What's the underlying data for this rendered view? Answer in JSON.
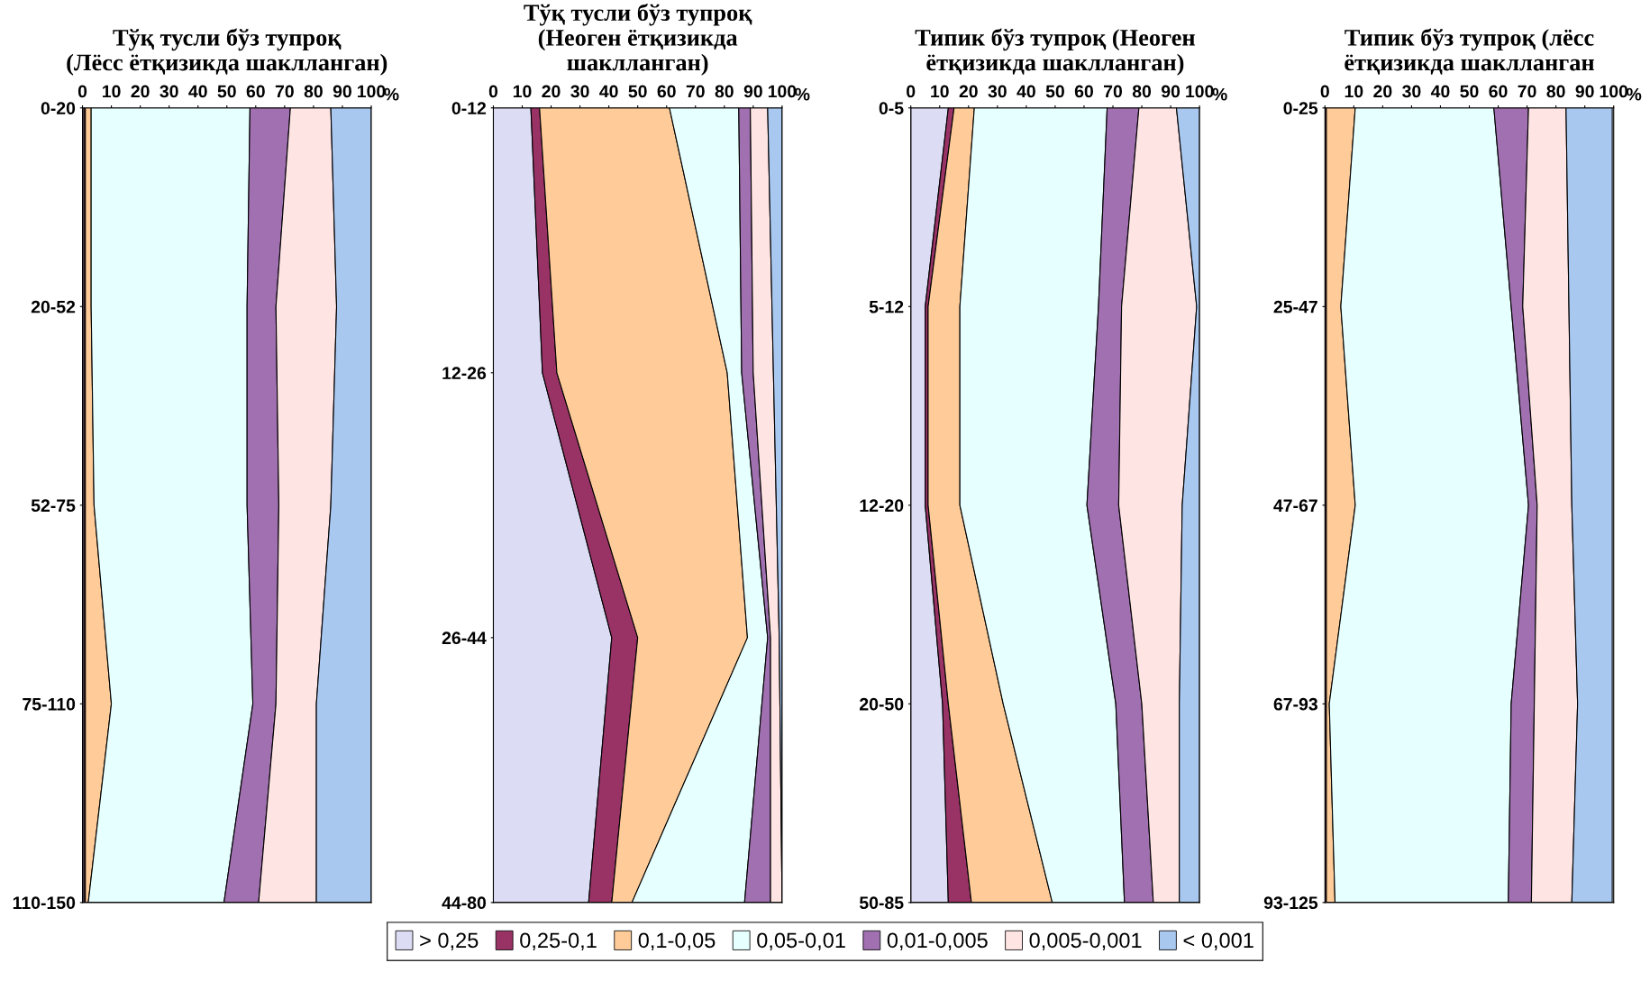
{
  "chart_data": [
    {
      "type": "area",
      "orientation": "horizontal",
      "stacked": true,
      "title": "Тўқ тусли бўз тупроқ\n(Лёсс ётқизикда шаклланган)",
      "xlabel": "%",
      "categories": [
        "0-20",
        "20-52",
        "52-75",
        "75-110",
        "110-150"
      ],
      "xlim": [
        0,
        100
      ],
      "xticks": [
        0,
        10,
        20,
        30,
        40,
        50,
        60,
        70,
        80,
        90,
        100
      ],
      "legend": "bottom",
      "series": [
        {
          "name": "> 0,25",
          "color": "#dcdcf5",
          "values": [
            0.5,
            0.5,
            0.5,
            0.5,
            0.5
          ]
        },
        {
          "name": "0,25-0,1",
          "color": "#993366",
          "values": [
            0.5,
            0.5,
            0.5,
            0.5,
            0.5
          ]
        },
        {
          "name": "0,1-0,05",
          "color": "#ffcc99",
          "values": [
            2,
            2,
            3,
            9,
            1
          ]
        },
        {
          "name": "0,05-0,01",
          "color": "#e6ffff",
          "values": [
            55,
            54,
            53,
            49,
            47
          ]
        },
        {
          "name": "0,01-0,005",
          "color": "#a070b0",
          "values": [
            14,
            10,
            11,
            8,
            12
          ]
        },
        {
          "name": "0,005-0,001",
          "color": "#ffe4e4",
          "values": [
            14,
            21,
            18,
            14,
            20
          ]
        },
        {
          "name": "< 0,001",
          "color": "#a8c8f0",
          "values": [
            14,
            12,
            14,
            19,
            19
          ]
        }
      ]
    },
    {
      "type": "area",
      "orientation": "horizontal",
      "stacked": true,
      "title": "Тўқ тусли бўз тупроқ\n(Неоген ётқизикда\nшаклланган)",
      "xlabel": "%",
      "categories": [
        "0-12",
        "12-26",
        "26-44",
        "44-80"
      ],
      "xlim": [
        0,
        100
      ],
      "xticks": [
        0,
        10,
        20,
        30,
        40,
        50,
        60,
        70,
        80,
        90,
        100
      ],
      "legend": "bottom",
      "series": [
        {
          "name": "> 0,25",
          "color": "#dcdcf5",
          "values": [
            13,
            17,
            41,
            33
          ]
        },
        {
          "name": "0,25-0,1",
          "color": "#993366",
          "values": [
            3,
            5,
            9,
            8
          ]
        },
        {
          "name": "0,1-0,05",
          "color": "#ffcc99",
          "values": [
            45,
            59,
            38,
            7
          ]
        },
        {
          "name": "0,05-0,01",
          "color": "#e6ffff",
          "values": [
            24,
            5,
            7,
            39
          ]
        },
        {
          "name": "0,01-0,005",
          "color": "#a070b0",
          "values": [
            4,
            4,
            1,
            9
          ]
        },
        {
          "name": "0,005-0,001",
          "color": "#ffe4e4",
          "values": [
            6,
            7,
            3,
            4
          ]
        },
        {
          "name": "< 0,001",
          "color": "#a8c8f0",
          "values": [
            5,
            3,
            1,
            0
          ]
        }
      ]
    },
    {
      "type": "area",
      "orientation": "horizontal",
      "stacked": true,
      "title": "Типик бўз тупроқ (Неоген\nётқизикда шаклланган)",
      "xlabel": "%",
      "categories": [
        "0-5",
        "5-12",
        "12-20",
        "20-50",
        "50-85"
      ],
      "xlim": [
        0,
        100
      ],
      "xticks": [
        0,
        10,
        20,
        30,
        40,
        50,
        60,
        70,
        80,
        90,
        100
      ],
      "legend": "bottom",
      "series": [
        {
          "name": "> 0,25",
          "color": "#dcdcf5",
          "values": [
            13,
            5,
            5,
            11,
            13
          ]
        },
        {
          "name": "0,25-0,1",
          "color": "#993366",
          "values": [
            2,
            1,
            1,
            2,
            8
          ]
        },
        {
          "name": "0,1-0,05",
          "color": "#ffcc99",
          "values": [
            7,
            11,
            11,
            19,
            28
          ]
        },
        {
          "name": "0,05-0,01",
          "color": "#e6ffff",
          "values": [
            46,
            48,
            44,
            39,
            25
          ]
        },
        {
          "name": "0,01-0,005",
          "color": "#a070b0",
          "values": [
            11,
            8,
            11,
            9,
            10
          ]
        },
        {
          "name": "0,005-0,001",
          "color": "#ffe4e4",
          "values": [
            13,
            26,
            22,
            13,
            9
          ]
        },
        {
          "name": "< 0,001",
          "color": "#a8c8f0",
          "values": [
            8,
            1,
            6,
            7,
            7
          ]
        }
      ]
    },
    {
      "type": "area",
      "orientation": "horizontal",
      "stacked": true,
      "title": "Типик бўз тупроқ (лёсс\nётқизикда шаклланган",
      "xlabel": "%",
      "categories": [
        "0-25",
        "25-47",
        "47-67",
        "67-93",
        "93-125"
      ],
      "xlim": [
        0,
        100
      ],
      "xticks": [
        0,
        10,
        20,
        30,
        40,
        50,
        60,
        70,
        80,
        90,
        100
      ],
      "legend": "bottom",
      "series": [
        {
          "name": "0,25-0,1",
          "color": "#993366",
          "values": [
            0.5,
            0.5,
            0.5,
            0.5,
            0.5
          ]
        },
        {
          "name": "0,1-0,05",
          "color": "#ffcc99",
          "values": [
            10,
            5,
            10,
            1,
            3
          ]
        },
        {
          "name": "0,05-0,01",
          "color": "#e6ffff",
          "values": [
            48,
            59,
            60,
            63,
            60
          ]
        },
        {
          "name": "0,01-0,005",
          "color": "#a070b0",
          "values": [
            12,
            4,
            3,
            8,
            8
          ]
        },
        {
          "name": "0,005-0,001",
          "color": "#ffe4e4",
          "values": [
            13,
            16,
            12,
            15,
            14
          ]
        },
        {
          "name": "< 0,001",
          "color": "#a8c8f0",
          "values": [
            16,
            15,
            14,
            12,
            14
          ]
        }
      ]
    }
  ]
}
